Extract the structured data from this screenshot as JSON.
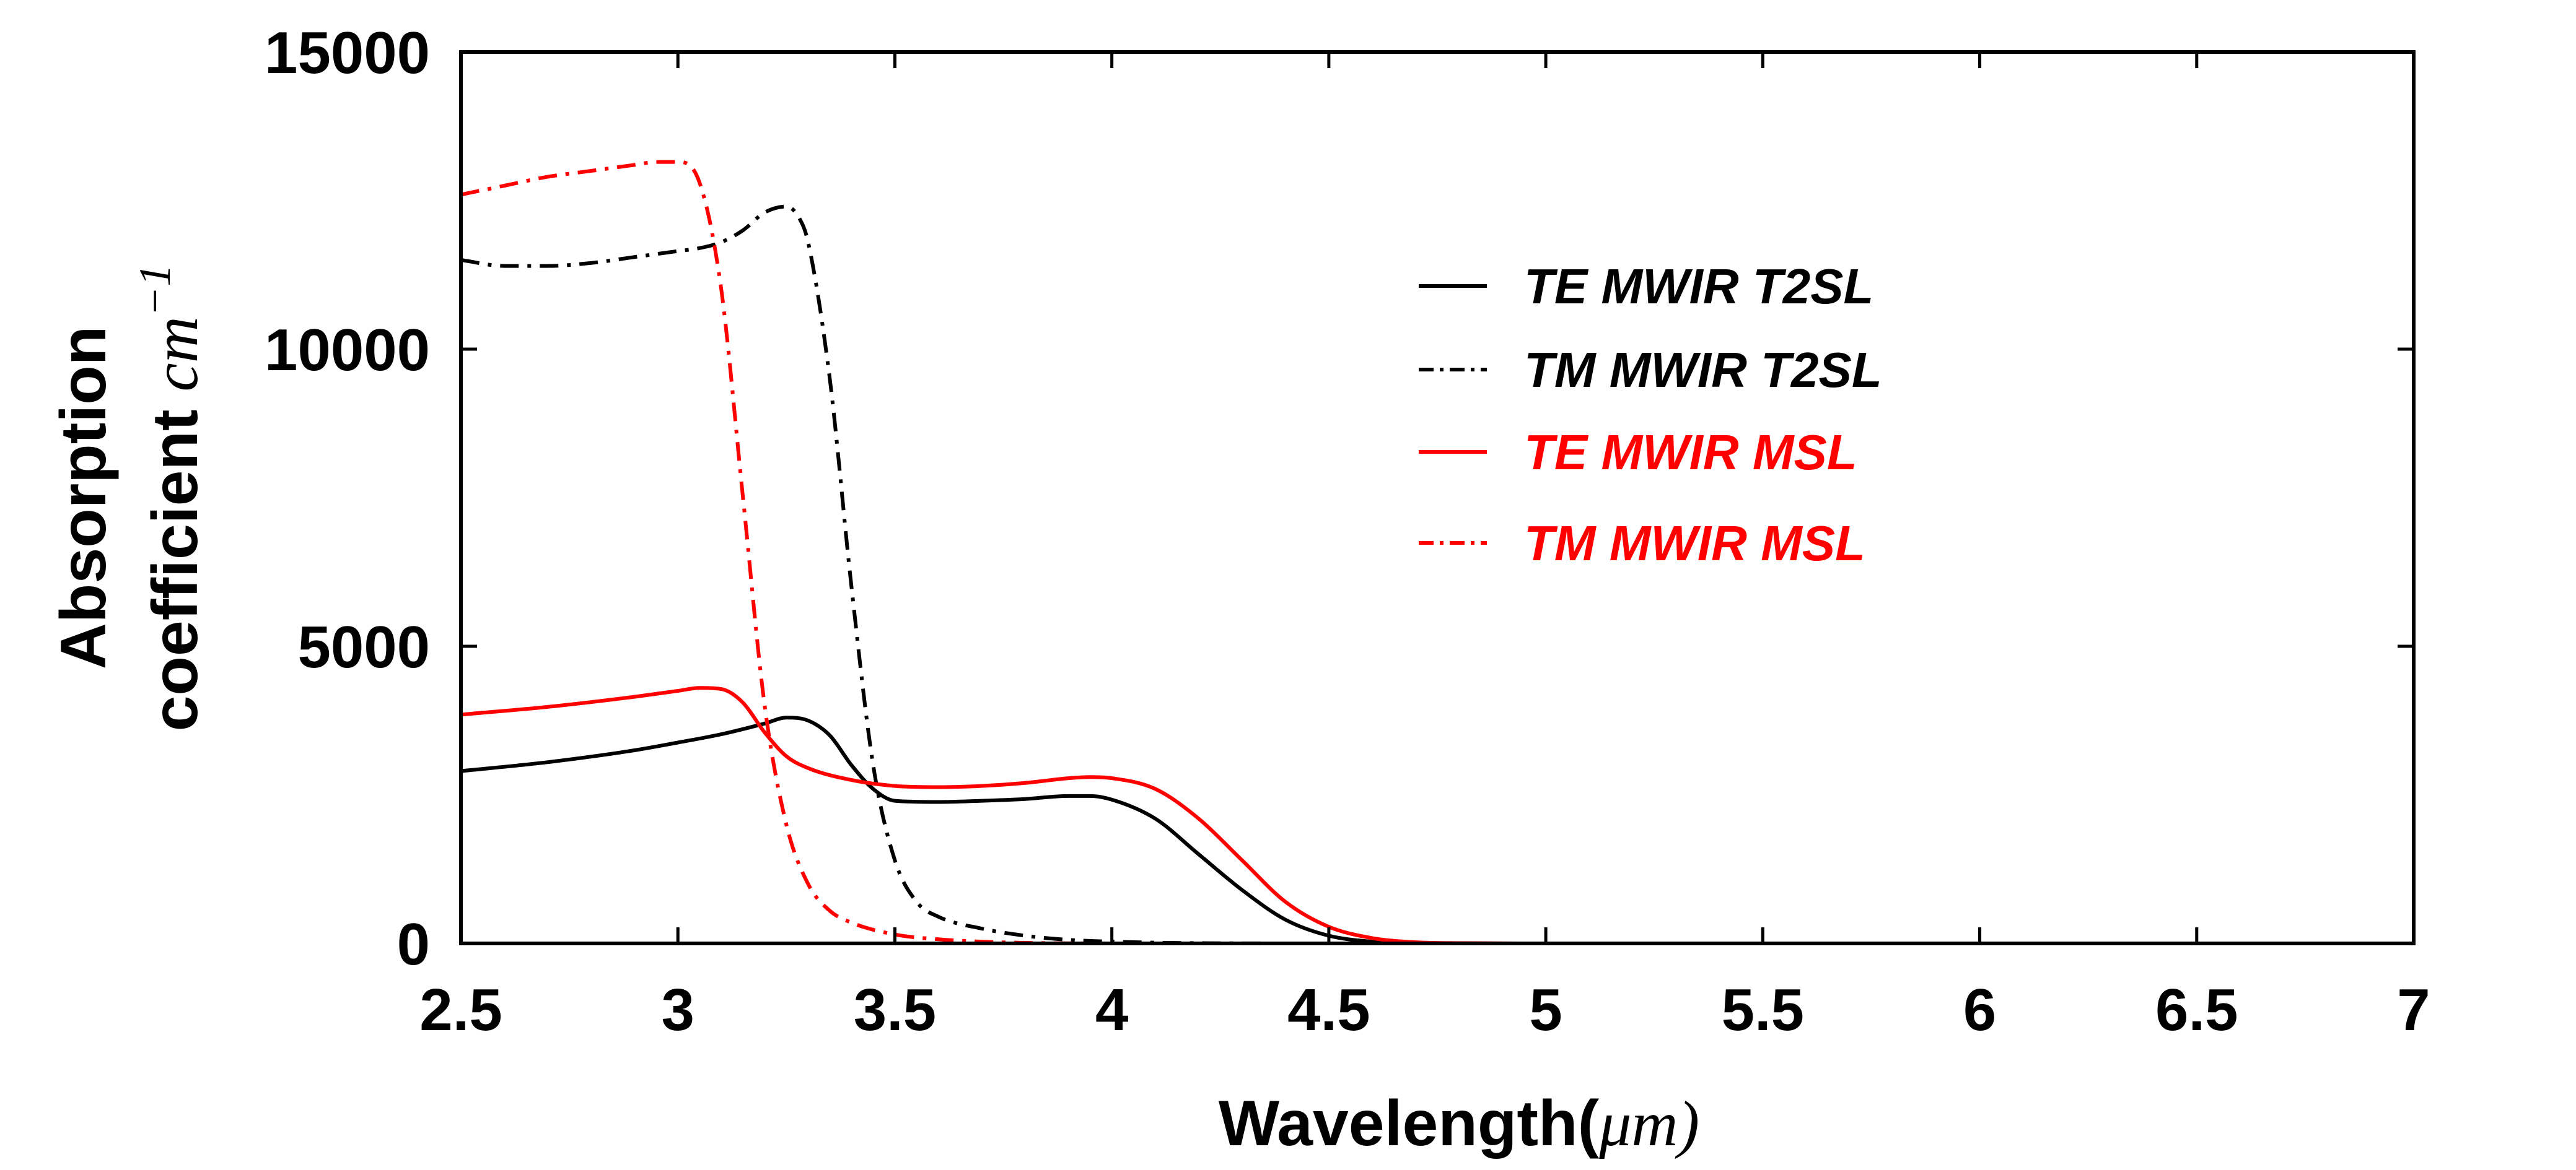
{
  "chart_data": {
    "type": "line",
    "title": "",
    "xlabel": {
      "text": "Wavelength(",
      "unit": "μm",
      "close": ")"
    },
    "ylabel": {
      "line1": "Absorption",
      "line2": "coefficient ",
      "unit": "cm",
      "exponent": "−1"
    },
    "xlim": [
      2.5,
      7
    ],
    "ylim": [
      0,
      15000
    ],
    "xticks": [
      2.5,
      3,
      3.5,
      4,
      4.5,
      5,
      5.5,
      6,
      6.5,
      7
    ],
    "xtick_labels": [
      "2.5",
      "3",
      "3.5",
      "4",
      "4.5",
      "5",
      "5.5",
      "6",
      "6.5",
      "7"
    ],
    "yticks": [
      0,
      5000,
      10000,
      15000
    ],
    "ytick_labels": [
      "0",
      "5000",
      "10000",
      "15000"
    ],
    "grid": false,
    "legend_position": "upper-right-inside",
    "series": [
      {
        "name": "TE MWIR T2SL",
        "color": "#000000",
        "dash": "solid",
        "x": [
          2.5,
          2.7,
          2.9,
          3.0,
          3.1,
          3.2,
          3.25,
          3.3,
          3.35,
          3.4,
          3.45,
          3.5,
          3.6,
          3.7,
          3.8,
          3.9,
          3.95,
          4.0,
          4.1,
          4.2,
          4.3,
          4.4,
          4.5,
          4.6,
          4.7,
          5.0,
          6.0,
          7.0
        ],
        "y": [
          2900,
          3050,
          3250,
          3380,
          3520,
          3700,
          3800,
          3750,
          3500,
          3000,
          2600,
          2400,
          2380,
          2400,
          2430,
          2480,
          2480,
          2420,
          2100,
          1500,
          900,
          400,
          130,
          30,
          5,
          0,
          0,
          0
        ]
      },
      {
        "name": "TM MWIR T2SL",
        "color": "#000000",
        "dash": "dashdot",
        "x": [
          2.5,
          2.6,
          2.7,
          2.8,
          2.9,
          3.0,
          3.05,
          3.1,
          3.15,
          3.2,
          3.25,
          3.28,
          3.3,
          3.35,
          3.4,
          3.45,
          3.5,
          3.55,
          3.6,
          3.7,
          3.8,
          3.9,
          4.0,
          4.2,
          4.5,
          5.0,
          7.0
        ],
        "y": [
          11500,
          11400,
          11400,
          11450,
          11550,
          11650,
          11700,
          11800,
          12000,
          12300,
          12400,
          12200,
          11800,
          9500,
          6000,
          3000,
          1400,
          700,
          450,
          250,
          130,
          60,
          30,
          5,
          0,
          0,
          0
        ]
      },
      {
        "name": "TE MWIR MSL",
        "color": "#ff0000",
        "dash": "solid",
        "x": [
          2.5,
          2.7,
          2.9,
          3.0,
          3.05,
          3.1,
          3.15,
          3.2,
          3.25,
          3.3,
          3.4,
          3.5,
          3.6,
          3.7,
          3.8,
          3.9,
          3.95,
          4.0,
          4.1,
          4.2,
          4.3,
          4.4,
          4.5,
          4.6,
          4.7,
          4.8,
          5.0,
          6.0,
          7.0
        ],
        "y": [
          3850,
          3980,
          4150,
          4250,
          4300,
          4280,
          4050,
          3550,
          3150,
          2950,
          2750,
          2650,
          2630,
          2650,
          2700,
          2780,
          2800,
          2780,
          2600,
          2100,
          1400,
          700,
          280,
          90,
          20,
          5,
          0,
          0,
          0
        ]
      },
      {
        "name": "TM MWIR MSL",
        "color": "#ff0000",
        "dash": "dashdot",
        "x": [
          2.5,
          2.6,
          2.7,
          2.8,
          2.9,
          2.95,
          3.0,
          3.05,
          3.1,
          3.15,
          3.2,
          3.25,
          3.3,
          3.35,
          3.4,
          3.5,
          3.6,
          3.7,
          3.8,
          4.0,
          4.2,
          4.5,
          5.0,
          7.0
        ],
        "y": [
          12600,
          12750,
          12900,
          13000,
          13100,
          13150,
          13150,
          12800,
          11000,
          7500,
          4000,
          2000,
          1000,
          550,
          350,
          150,
          70,
          30,
          10,
          0,
          0,
          0,
          0,
          0
        ]
      }
    ]
  }
}
